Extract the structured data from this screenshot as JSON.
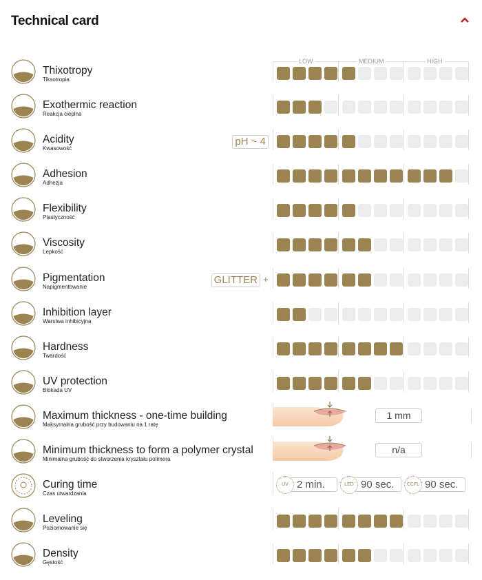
{
  "header": {
    "title": "Technical card",
    "toggle_icon": "chevron-up-icon",
    "toggle_color": "#b5261e"
  },
  "colors": {
    "filled": "#9c8352",
    "empty": "#ececec"
  },
  "scale": {
    "groups": [
      "LOW",
      "MEDIUM",
      "HIGH"
    ],
    "max": 12
  },
  "rows": [
    {
      "title": "Thixotropy",
      "subtitle": "Tiksotropia",
      "icon": "thixotropy-lock-icon",
      "type": "scale",
      "level": 5
    },
    {
      "title": "Exothermic reaction",
      "subtitle": "Reakcja cieplna",
      "icon": "heat-waves-icon",
      "type": "scale",
      "level": 3
    },
    {
      "title": "Acidity",
      "subtitle": "Kwasowość",
      "icon": "ph-drop-icon",
      "type": "scale",
      "level": 5,
      "tag": "pH ~ 4"
    },
    {
      "title": "Adhesion",
      "subtitle": "Adhezja",
      "icon": "adhesion-icon",
      "type": "scale",
      "level": 11
    },
    {
      "title": "Flexibility",
      "subtitle": "Plastyczność",
      "icon": "flexibility-icon",
      "type": "scale",
      "level": 5
    },
    {
      "title": "Viscosity",
      "subtitle": "Lepkość",
      "icon": "viscosity-icon",
      "type": "scale",
      "level": 6
    },
    {
      "title": "Pigmentation",
      "subtitle": "Napigmentowanie",
      "icon": "pigment-drops-icon",
      "type": "scale",
      "level": 6,
      "tag": "GLITTER",
      "plus": "+"
    },
    {
      "title": "Inhibition layer",
      "subtitle": "Warstwa inhibicyjna",
      "icon": "inhibition-layer-icon",
      "type": "scale",
      "level": 2
    },
    {
      "title": "Hardness",
      "subtitle": "Twardość",
      "icon": "hammer-icon",
      "type": "scale",
      "level": 8
    },
    {
      "title": "UV protection",
      "subtitle": "Blokada UV",
      "icon": "uv-protection-icon",
      "type": "scale",
      "level": 6
    },
    {
      "title": "Maximum thickness - one-time building",
      "subtitle": "Maksymalna grubość przy budowaniu na 1 ratę",
      "icon": "max-thickness-icon",
      "type": "value",
      "value": "1 mm"
    },
    {
      "title": "Minimum thickness to form a polymer crystal",
      "subtitle": "Minimalna grubość do stworzenia kryształu polimera",
      "icon": "min-thickness-icon",
      "type": "value",
      "value": "n/a"
    },
    {
      "title": "Curing time",
      "subtitle": "Czas utwardzania",
      "icon": "lamp-icon",
      "type": "curing",
      "lamps": [
        {
          "label": "UV",
          "value": "2 min."
        },
        {
          "label": "LED",
          "value": "90 sec."
        },
        {
          "label": "CCFL",
          "value": "90 sec."
        }
      ]
    },
    {
      "title": "Leveling",
      "subtitle": "Poziomowanie się",
      "icon": "leveling-icon",
      "type": "scale",
      "level": 8
    },
    {
      "title": "Density",
      "subtitle": "Gęstość",
      "icon": "density-icon",
      "type": "scale",
      "level": 6
    }
  ]
}
